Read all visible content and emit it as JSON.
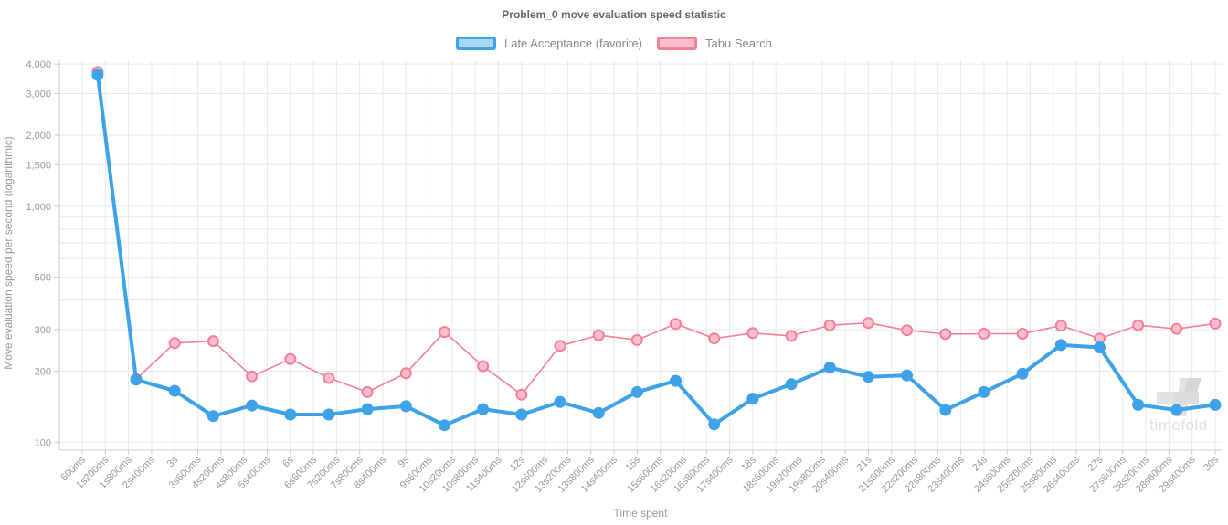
{
  "chart_data": {
    "type": "line",
    "title": "Problem_0 move evaluation speed statistic",
    "xlabel": "Time spent",
    "ylabel": "Move evaluation speed per second (logarithmic)",
    "watermark": "timefold",
    "legend": {
      "position": "top"
    },
    "x_axis": {
      "scale": "time",
      "tick_interval_ms": 600,
      "tick_labels": [
        "600ms",
        "1s200ms",
        "1s800ms",
        "2s400ms",
        "3s",
        "3s600ms",
        "4s200ms",
        "4s800ms",
        "5s400ms",
        "6s",
        "6s600ms",
        "7s200ms",
        "7s800ms",
        "8s400ms",
        "9s",
        "9s600ms",
        "10s200ms",
        "10s800ms",
        "11s400ms",
        "12s",
        "12s600ms",
        "13s200ms",
        "13s800ms",
        "14s400ms",
        "15s",
        "15s600ms",
        "16s200ms",
        "16s800ms",
        "17s400ms",
        "18s",
        "18s600ms",
        "19s200ms",
        "19s800ms",
        "20s400ms",
        "21s",
        "21s600ms",
        "22s200ms",
        "22s800ms",
        "23s400ms",
        "24s",
        "24s600ms",
        "25s200ms",
        "25s800ms",
        "26s400ms",
        "27s",
        "27s600ms",
        "28s200ms",
        "28s800ms",
        "29s400ms",
        "30s"
      ]
    },
    "y_axis": {
      "scale": "logarithmic",
      "labeled_ticks": [
        4000,
        3000,
        2000,
        1500,
        1000,
        500,
        300,
        200,
        100
      ],
      "tick_labels": [
        "4,000",
        "3,000",
        "2,000",
        "1,500",
        "1,000",
        "500",
        "300",
        "200",
        "100"
      ],
      "minor_gridlines": [
        900,
        800,
        700,
        600,
        400
      ],
      "range_approx": [
        100,
        4200
      ]
    },
    "series": [
      {
        "name": "Late Acceptance (favorite)",
        "color": "#3DA2E8",
        "legend_fill": "#ABD6F2",
        "point_style": "solid",
        "line_width": 4,
        "x_ms": [
          1000,
          2000,
          3000,
          4000,
          5000,
          6000,
          7000,
          8000,
          9000,
          10000,
          11000,
          12000,
          13000,
          14000,
          15000,
          16000,
          17000,
          18000,
          19000,
          20000,
          21000,
          22000,
          23000,
          24000,
          25000,
          26000,
          27000,
          28000,
          29000,
          30000
        ],
        "values": [
          3600,
          184,
          165,
          129,
          143,
          131,
          131,
          138,
          142,
          118,
          138,
          131,
          148,
          133,
          163,
          182,
          119,
          153,
          176,
          207,
          189,
          192,
          137,
          163,
          195,
          258,
          252,
          144,
          137,
          144
        ]
      },
      {
        "name": "Tabu Search",
        "color": "#F67E98",
        "legend_fill": "#F9BFCD",
        "point_style": "hollow",
        "line_width": 1.6,
        "x_ms": [
          1000,
          2000,
          3000,
          4000,
          5000,
          6000,
          7000,
          8000,
          9000,
          10000,
          11000,
          12000,
          13000,
          14000,
          15000,
          16000,
          17000,
          18000,
          19000,
          20000,
          21000,
          22000,
          23000,
          24000,
          25000,
          26000,
          27000,
          28000,
          29000,
          30000
        ],
        "values": [
          3700,
          185,
          263,
          268,
          190,
          225,
          187,
          163,
          196,
          293,
          210,
          159,
          256,
          284,
          271,
          317,
          275,
          290,
          282,
          313,
          320,
          298,
          287,
          288,
          288,
          312,
          275,
          313,
          302,
          318
        ]
      }
    ],
    "colors": {
      "title": "#666666",
      "axis_text": "#999999",
      "gridline": "#e8e8e8",
      "axis_line": "#cccccc",
      "watermark": "#e2e2e2"
    }
  }
}
